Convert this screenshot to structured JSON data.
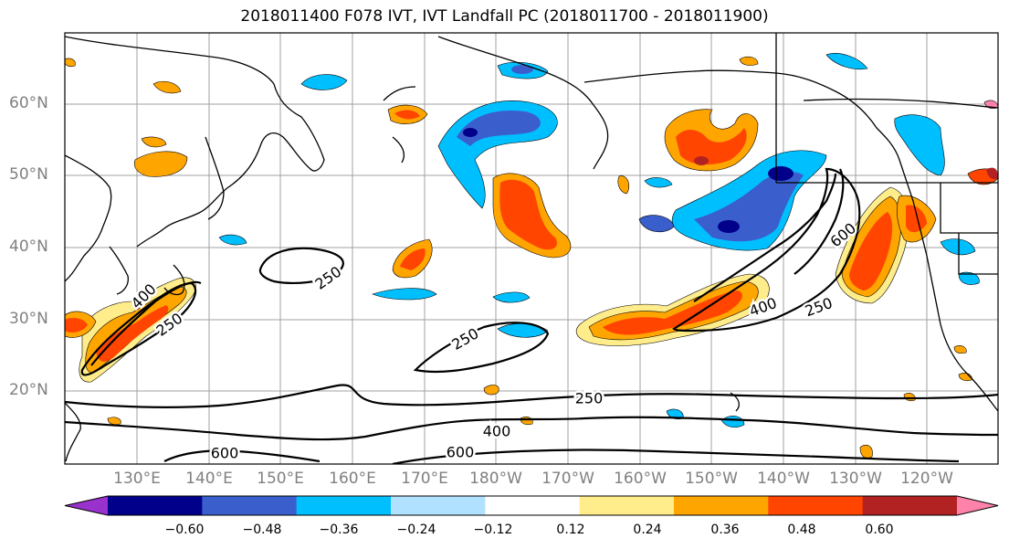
{
  "title": "2018011400 F078 IVT, IVT Landfall PC (2018011700 - 2018011900)",
  "lat_labels": [
    "60°N",
    "50°N",
    "40°N",
    "30°N",
    "20°N"
  ],
  "lon_labels": [
    "130°E",
    "140°E",
    "150°E",
    "160°E",
    "170°E",
    "180°W",
    "170°W",
    "160°W",
    "150°W",
    "140°W",
    "130°W",
    "120°W"
  ],
  "contour_labels": [
    "250",
    "400",
    "250",
    "250",
    "600",
    "400",
    "250",
    "250",
    "400",
    "600",
    "600"
  ],
  "colorbar": {
    "colors": [
      "#9932cc",
      "#00008b",
      "#3a5fcd",
      "#00bfff",
      "#b0e2ff",
      "#ffffff",
      "#ffec8b",
      "#ffa500",
      "#ff4500",
      "#b22222",
      "#ff82ab"
    ],
    "labels": [
      "−0.60",
      "−0.48",
      "−0.36",
      "−0.24",
      "−0.12",
      "0.12",
      "0.24",
      "0.36",
      "0.48",
      "0.60"
    ]
  }
}
